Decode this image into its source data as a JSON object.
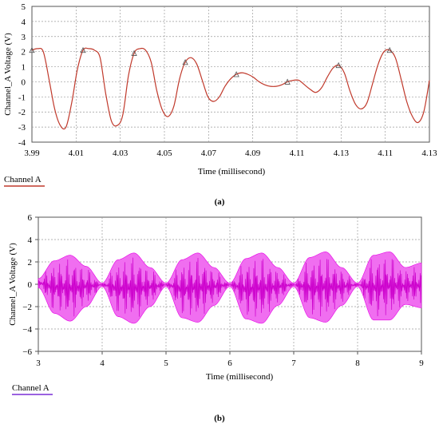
{
  "chart_data": [
    {
      "panel_label": "(a)",
      "type": "line",
      "xlabel": "Time (millisecond)",
      "ylabel": "Channel_A Voltage (V)",
      "xlim": [
        3.99,
        4.13
      ],
      "ylim": [
        -4,
        5
      ],
      "x_ticks": [
        "3.99",
        "4.01",
        "4.03",
        "4.05",
        "4.07",
        "4.09",
        "4.11",
        "4.13",
        "4.11",
        "4.13"
      ],
      "y_ticks": [
        "5",
        "4",
        "3",
        "2",
        "1",
        "0",
        "-1",
        "-2",
        "-3",
        "-4"
      ],
      "legend": "Channel A",
      "legend_placement": "bottom-left",
      "grid": true,
      "series": [
        {
          "color": "#c0392b",
          "x": [
            3.99,
            3.992,
            3.994,
            3.996,
            3.998,
            4.0,
            4.002,
            4.004,
            4.006,
            4.008,
            4.01,
            4.012,
            4.014,
            4.016,
            4.018,
            4.02,
            4.022,
            4.024,
            4.026,
            4.028,
            4.03,
            4.032,
            4.034,
            4.036,
            4.038,
            4.04,
            4.042,
            4.044,
            4.046,
            4.048,
            4.05,
            4.052,
            4.054,
            4.056,
            4.058,
            4.06,
            4.062,
            4.064,
            4.066,
            4.068,
            4.07,
            4.072,
            4.074,
            4.076,
            4.078,
            4.08,
            4.082,
            4.084,
            4.086,
            4.088,
            4.09,
            4.092,
            4.094,
            4.096,
            4.098,
            4.1,
            4.102,
            4.104,
            4.106,
            4.108,
            4.11,
            4.112,
            4.114,
            4.116,
            4.118,
            4.12,
            4.122,
            4.124,
            4.126,
            4.128,
            4.13
          ],
          "y": [
            2.1,
            2.2,
            2.0,
            0.2,
            -1.8,
            -2.9,
            -3.0,
            -1.4,
            0.8,
            2.1,
            2.2,
            2.1,
            1.6,
            -0.8,
            -2.6,
            -2.9,
            -2.2,
            0.4,
            1.9,
            2.2,
            2.1,
            1.3,
            -0.6,
            -1.9,
            -2.3,
            -1.6,
            0.2,
            1.3,
            1.6,
            1.2,
            0.1,
            -1.0,
            -1.3,
            -1.0,
            -0.3,
            0.2,
            0.5,
            0.6,
            0.5,
            0.3,
            0.0,
            -0.2,
            -0.3,
            -0.3,
            -0.2,
            0.0,
            0.1,
            0.1,
            -0.2,
            -0.5,
            -0.7,
            -0.4,
            0.3,
            0.9,
            1.1,
            0.6,
            -0.6,
            -1.5,
            -1.8,
            -1.4,
            -0.1,
            1.2,
            2.0,
            2.1,
            1.6,
            0.2,
            -1.3,
            -2.3,
            -2.7,
            -2.0,
            0.1
          ]
        }
      ]
    },
    {
      "panel_label": "(b)",
      "type": "area",
      "xlabel": "Time (millisecond)",
      "ylabel": "Channel_A Voltage (V)",
      "xlim": [
        3,
        9
      ],
      "ylim": [
        -6,
        6
      ],
      "x_ticks": [
        "3",
        "4",
        "5",
        "6",
        "7",
        "8",
        "9"
      ],
      "y_ticks": [
        "6",
        "4",
        "2",
        "0",
        "−2",
        "−4",
        "−6"
      ],
      "legend": "Channel A",
      "legend_placement": "bottom-left",
      "grid": true,
      "series": [
        {
          "color": "#e600e6",
          "x": [
            3.0,
            3.25,
            3.5,
            3.75,
            4.0,
            4.25,
            4.5,
            4.75,
            5.0,
            5.25,
            5.5,
            5.75,
            6.0,
            6.25,
            6.5,
            6.75,
            7.0,
            7.25,
            7.5,
            7.75,
            8.0,
            8.25,
            8.5,
            8.75,
            9.0
          ],
          "upper": [
            0.5,
            2.1,
            2.6,
            1.6,
            0.1,
            2.2,
            2.8,
            1.5,
            0.1,
            2.2,
            2.8,
            1.5,
            0.1,
            2.3,
            2.8,
            1.5,
            0.1,
            2.4,
            2.9,
            1.5,
            0.1,
            2.6,
            2.9,
            1.5,
            1.9
          ],
          "lower": [
            -0.3,
            -2.6,
            -3.3,
            -2.0,
            -0.2,
            -2.9,
            -3.5,
            -2.0,
            -0.2,
            -3.0,
            -3.4,
            -1.9,
            -0.2,
            -3.1,
            -3.5,
            -1.9,
            -0.2,
            -3.0,
            -3.4,
            -1.9,
            -0.2,
            -3.2,
            -3.2,
            -1.8,
            -2.1
          ]
        }
      ]
    }
  ]
}
